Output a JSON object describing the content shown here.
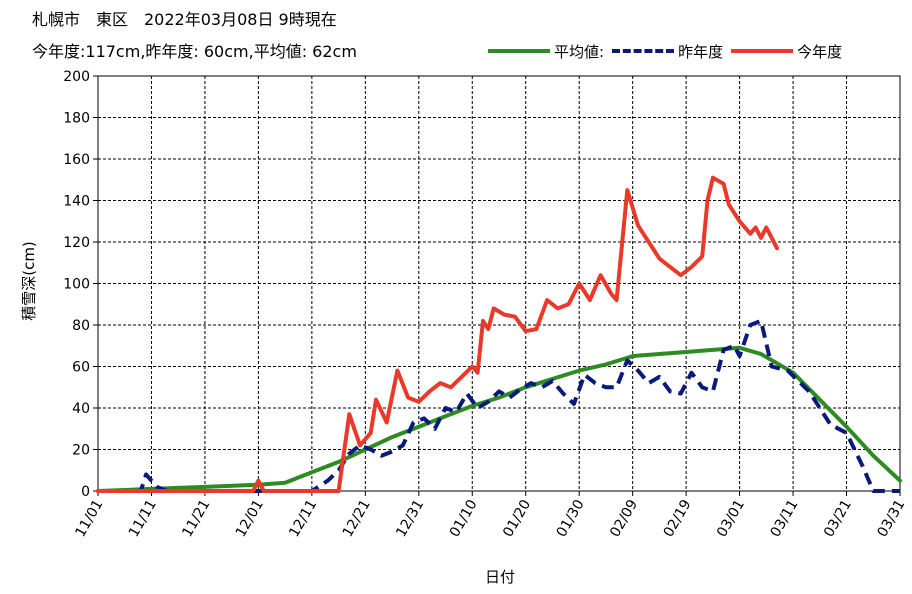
{
  "header": {
    "title": "札幌市　東区　2022年03月08日 9時現在",
    "subtitle": "今年度:117cm,昨年度: 60cm,平均値: 62cm"
  },
  "legend_position": "top-right",
  "chart_data": {
    "type": "line",
    "xlabel": "日付",
    "ylabel": "積雪深(cm)",
    "ylim": [
      0,
      200
    ],
    "yticks": [
      0,
      20,
      40,
      60,
      80,
      100,
      120,
      140,
      160,
      180,
      200
    ],
    "x_categories": [
      "11/01",
      "11/11",
      "11/21",
      "12/01",
      "12/11",
      "12/21",
      "12/31",
      "01/10",
      "01/20",
      "01/30",
      "02/09",
      "02/19",
      "03/01",
      "03/11",
      "03/21",
      "03/31"
    ],
    "grid": true,
    "series": [
      {
        "name": "平均値:",
        "color": "#2e8b22",
        "style": "solid",
        "points": [
          [
            "11/01",
            0
          ],
          [
            "11/11",
            1
          ],
          [
            "11/21",
            2
          ],
          [
            "12/01",
            3
          ],
          [
            "12/06",
            4
          ],
          [
            "12/11",
            9
          ],
          [
            "12/16",
            14
          ],
          [
            "12/21",
            20
          ],
          [
            "12/26",
            26
          ],
          [
            "12/31",
            31
          ],
          [
            "01/05",
            36
          ],
          [
            "01/10",
            41
          ],
          [
            "01/15",
            45
          ],
          [
            "01/20",
            50
          ],
          [
            "01/25",
            54
          ],
          [
            "01/30",
            58
          ],
          [
            "02/04",
            61
          ],
          [
            "02/09",
            65
          ],
          [
            "02/14",
            66
          ],
          [
            "02/19",
            67
          ],
          [
            "02/24",
            68
          ],
          [
            "03/01",
            69
          ],
          [
            "03/05",
            66
          ],
          [
            "03/11",
            57
          ],
          [
            "03/16",
            44
          ],
          [
            "03/21",
            31
          ],
          [
            "03/26",
            17
          ],
          [
            "03/31",
            5
          ]
        ]
      },
      {
        "name": "昨年度",
        "color": "#0a1a7a",
        "style": "dashed",
        "points": [
          [
            "11/01",
            0
          ],
          [
            "11/09",
            0
          ],
          [
            "11/10",
            8
          ],
          [
            "11/12",
            2
          ],
          [
            "11/14",
            0
          ],
          [
            "12/11",
            0
          ],
          [
            "12/14",
            5
          ],
          [
            "12/16",
            10
          ],
          [
            "12/18",
            18
          ],
          [
            "12/20",
            22
          ],
          [
            "12/22",
            20
          ],
          [
            "12/24",
            17
          ],
          [
            "12/26",
            19
          ],
          [
            "12/28",
            22
          ],
          [
            "12/30",
            33
          ],
          [
            "01/01",
            35
          ],
          [
            "01/03",
            30
          ],
          [
            "01/05",
            40
          ],
          [
            "01/07",
            38
          ],
          [
            "01/09",
            47
          ],
          [
            "01/11",
            40
          ],
          [
            "01/13",
            43
          ],
          [
            "01/15",
            48
          ],
          [
            "01/17",
            45
          ],
          [
            "01/19",
            49
          ],
          [
            "01/21",
            52
          ],
          [
            "01/23",
            50
          ],
          [
            "01/25",
            53
          ],
          [
            "01/27",
            47
          ],
          [
            "01/29",
            42
          ],
          [
            "01/31",
            56
          ],
          [
            "02/02",
            52
          ],
          [
            "02/04",
            50
          ],
          [
            "02/06",
            50
          ],
          [
            "02/08",
            63
          ],
          [
            "02/10",
            58
          ],
          [
            "02/12",
            52
          ],
          [
            "02/14",
            55
          ],
          [
            "02/16",
            48
          ],
          [
            "02/18",
            47
          ],
          [
            "02/20",
            57
          ],
          [
            "02/22",
            50
          ],
          [
            "02/24",
            48
          ],
          [
            "02/26",
            68
          ],
          [
            "02/28",
            70
          ],
          [
            "03/01",
            65
          ],
          [
            "03/03",
            80
          ],
          [
            "03/05",
            82
          ],
          [
            "03/07",
            60
          ],
          [
            "03/10",
            58
          ],
          [
            "03/14",
            48
          ],
          [
            "03/18",
            32
          ],
          [
            "03/21",
            28
          ],
          [
            "03/24",
            12
          ],
          [
            "03/26",
            0
          ],
          [
            "03/31",
            0
          ]
        ]
      },
      {
        "name": "今年度",
        "color": "#e8392b",
        "style": "solid",
        "points": [
          [
            "11/01",
            0
          ],
          [
            "11/30",
            0
          ],
          [
            "12/01",
            5
          ],
          [
            "12/02",
            0
          ],
          [
            "12/16",
            0
          ],
          [
            "12/18",
            37
          ],
          [
            "12/20",
            22
          ],
          [
            "12/22",
            28
          ],
          [
            "12/23",
            44
          ],
          [
            "12/25",
            33
          ],
          [
            "12/27",
            58
          ],
          [
            "12/29",
            45
          ],
          [
            "12/31",
            43
          ],
          [
            "01/02",
            48
          ],
          [
            "01/04",
            52
          ],
          [
            "01/06",
            50
          ],
          [
            "01/08",
            55
          ],
          [
            "01/10",
            60
          ],
          [
            "01/11",
            57
          ],
          [
            "01/12",
            82
          ],
          [
            "01/13",
            78
          ],
          [
            "01/14",
            88
          ],
          [
            "01/16",
            85
          ],
          [
            "01/18",
            84
          ],
          [
            "01/20",
            77
          ],
          [
            "01/22",
            78
          ],
          [
            "01/24",
            92
          ],
          [
            "01/26",
            88
          ],
          [
            "01/28",
            90
          ],
          [
            "01/30",
            100
          ],
          [
            "02/01",
            92
          ],
          [
            "02/03",
            104
          ],
          [
            "02/05",
            95
          ],
          [
            "02/06",
            92
          ],
          [
            "02/08",
            145
          ],
          [
            "02/10",
            128
          ],
          [
            "02/12",
            120
          ],
          [
            "02/14",
            112
          ],
          [
            "02/16",
            108
          ],
          [
            "02/18",
            104
          ],
          [
            "02/20",
            108
          ],
          [
            "02/22",
            113
          ],
          [
            "02/23",
            140
          ],
          [
            "02/24",
            151
          ],
          [
            "02/26",
            148
          ],
          [
            "02/27",
            138
          ],
          [
            "03/01",
            130
          ],
          [
            "03/03",
            124
          ],
          [
            "03/04",
            127
          ],
          [
            "03/05",
            122
          ],
          [
            "03/06",
            127
          ],
          [
            "03/07",
            122
          ],
          [
            "03/08",
            117
          ]
        ]
      }
    ]
  }
}
